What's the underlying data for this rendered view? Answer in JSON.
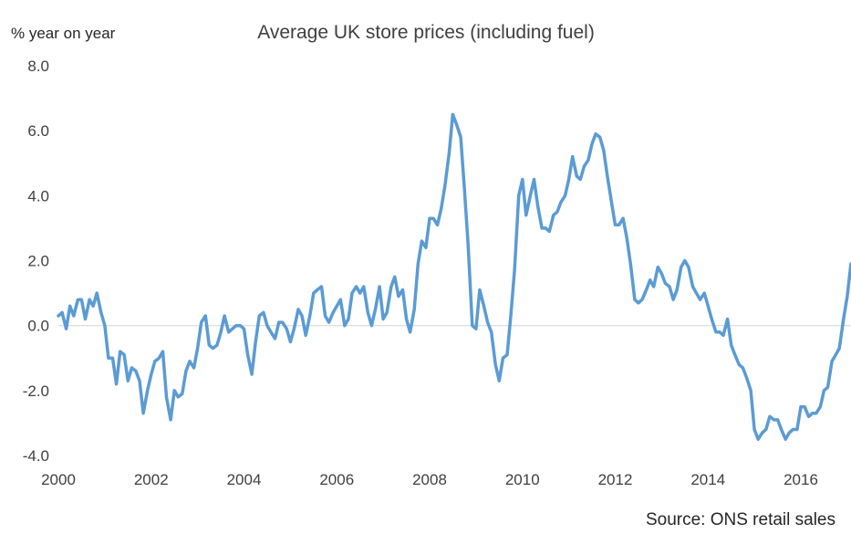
{
  "chart_data": {
    "type": "line",
    "title": "Average UK store prices (including fuel)",
    "ylabel": "% year on year",
    "xlabel": "",
    "source": "Source: ONS retail sales",
    "ylim": [
      -4.0,
      8.0
    ],
    "xlim": [
      2000,
      2017
    ],
    "y_ticks": [
      "8.0",
      "6.0",
      "4.0",
      "2.0",
      "0.0",
      "-2.0",
      "-4.0"
    ],
    "y_tick_values": [
      8,
      6,
      4,
      2,
      0,
      -2,
      -4
    ],
    "x_ticks": [
      "2000",
      "2002",
      "2004",
      "2006",
      "2008",
      "2010",
      "2012",
      "2014",
      "2016"
    ],
    "x_tick_values": [
      2000,
      2002,
      2004,
      2006,
      2008,
      2010,
      2012,
      2014,
      2016
    ],
    "grid": false,
    "legend": "none",
    "line_color": "#5b9bd5",
    "zero_line_color": "#d9d9d9",
    "series": [
      {
        "values": [
          [
            2000.0,
            0.3
          ],
          [
            2000.08,
            0.4
          ],
          [
            2000.17,
            -0.1
          ],
          [
            2000.25,
            0.6
          ],
          [
            2000.33,
            0.3
          ],
          [
            2000.42,
            0.8
          ],
          [
            2000.5,
            0.8
          ],
          [
            2000.58,
            0.2
          ],
          [
            2000.67,
            0.8
          ],
          [
            2000.75,
            0.6
          ],
          [
            2000.83,
            1.0
          ],
          [
            2000.92,
            0.4
          ],
          [
            2001.0,
            0.0
          ],
          [
            2001.08,
            -1.0
          ],
          [
            2001.17,
            -1.0
          ],
          [
            2001.25,
            -1.8
          ],
          [
            2001.33,
            -0.8
          ],
          [
            2001.42,
            -0.9
          ],
          [
            2001.5,
            -1.7
          ],
          [
            2001.58,
            -1.3
          ],
          [
            2001.67,
            -1.4
          ],
          [
            2001.75,
            -1.7
          ],
          [
            2001.83,
            -2.7
          ],
          [
            2001.92,
            -2.0
          ],
          [
            2002.0,
            -1.5
          ],
          [
            2002.08,
            -1.1
          ],
          [
            2002.17,
            -1.0
          ],
          [
            2002.25,
            -0.8
          ],
          [
            2002.33,
            -2.2
          ],
          [
            2002.42,
            -2.9
          ],
          [
            2002.5,
            -2.0
          ],
          [
            2002.58,
            -2.2
          ],
          [
            2002.67,
            -2.1
          ],
          [
            2002.75,
            -1.4
          ],
          [
            2002.83,
            -1.1
          ],
          [
            2002.92,
            -1.3
          ],
          [
            2003.0,
            -0.7
          ],
          [
            2003.08,
            0.1
          ],
          [
            2003.17,
            0.3
          ],
          [
            2003.25,
            -0.6
          ],
          [
            2003.33,
            -0.7
          ],
          [
            2003.42,
            -0.6
          ],
          [
            2003.5,
            -0.2
          ],
          [
            2003.58,
            0.3
          ],
          [
            2003.67,
            -0.2
          ],
          [
            2003.75,
            -0.1
          ],
          [
            2003.83,
            0.0
          ],
          [
            2003.92,
            0.0
          ],
          [
            2004.0,
            -0.1
          ],
          [
            2004.08,
            -0.9
          ],
          [
            2004.17,
            -1.5
          ],
          [
            2004.25,
            -0.5
          ],
          [
            2004.33,
            0.3
          ],
          [
            2004.42,
            0.4
          ],
          [
            2004.5,
            0.0
          ],
          [
            2004.58,
            -0.2
          ],
          [
            2004.67,
            -0.4
          ],
          [
            2004.75,
            0.1
          ],
          [
            2004.83,
            0.1
          ],
          [
            2004.92,
            -0.1
          ],
          [
            2005.0,
            -0.5
          ],
          [
            2005.08,
            -0.1
          ],
          [
            2005.17,
            0.5
          ],
          [
            2005.25,
            0.3
          ],
          [
            2005.33,
            -0.3
          ],
          [
            2005.42,
            0.3
          ],
          [
            2005.5,
            1.0
          ],
          [
            2005.58,
            1.1
          ],
          [
            2005.67,
            1.2
          ],
          [
            2005.75,
            0.3
          ],
          [
            2005.83,
            0.1
          ],
          [
            2005.92,
            0.4
          ],
          [
            2006.0,
            0.6
          ],
          [
            2006.08,
            0.8
          ],
          [
            2006.17,
            0.0
          ],
          [
            2006.25,
            0.2
          ],
          [
            2006.33,
            1.0
          ],
          [
            2006.42,
            1.2
          ],
          [
            2006.5,
            1.0
          ],
          [
            2006.58,
            1.2
          ],
          [
            2006.67,
            0.4
          ],
          [
            2006.75,
            0.0
          ],
          [
            2006.83,
            0.5
          ],
          [
            2006.92,
            1.2
          ],
          [
            2007.0,
            0.2
          ],
          [
            2007.08,
            0.4
          ],
          [
            2007.17,
            1.2
          ],
          [
            2007.25,
            1.5
          ],
          [
            2007.33,
            0.9
          ],
          [
            2007.42,
            1.1
          ],
          [
            2007.5,
            0.2
          ],
          [
            2007.58,
            -0.2
          ],
          [
            2007.67,
            0.5
          ],
          [
            2007.75,
            1.9
          ],
          [
            2007.83,
            2.6
          ],
          [
            2007.92,
            2.4
          ],
          [
            2008.0,
            3.3
          ],
          [
            2008.08,
            3.3
          ],
          [
            2008.17,
            3.1
          ],
          [
            2008.25,
            3.6
          ],
          [
            2008.33,
            4.3
          ],
          [
            2008.42,
            5.3
          ],
          [
            2008.5,
            6.5
          ],
          [
            2008.58,
            6.2
          ],
          [
            2008.67,
            5.8
          ],
          [
            2008.75,
            4.2
          ],
          [
            2008.83,
            2.5
          ],
          [
            2008.92,
            0.0
          ],
          [
            2009.0,
            -0.1
          ],
          [
            2009.08,
            1.1
          ],
          [
            2009.17,
            0.6
          ],
          [
            2009.25,
            0.1
          ],
          [
            2009.33,
            -0.2
          ],
          [
            2009.42,
            -1.2
          ],
          [
            2009.5,
            -1.7
          ],
          [
            2009.58,
            -1.0
          ],
          [
            2009.67,
            -0.9
          ],
          [
            2009.75,
            0.3
          ],
          [
            2009.83,
            1.7
          ],
          [
            2009.92,
            4.0
          ],
          [
            2010.0,
            4.5
          ],
          [
            2010.08,
            3.4
          ],
          [
            2010.17,
            4.0
          ],
          [
            2010.25,
            4.5
          ],
          [
            2010.33,
            3.7
          ],
          [
            2010.42,
            3.0
          ],
          [
            2010.5,
            3.0
          ],
          [
            2010.58,
            2.9
          ],
          [
            2010.67,
            3.4
          ],
          [
            2010.75,
            3.5
          ],
          [
            2010.83,
            3.8
          ],
          [
            2010.92,
            4.0
          ],
          [
            2011.0,
            4.5
          ],
          [
            2011.08,
            5.2
          ],
          [
            2011.17,
            4.6
          ],
          [
            2011.25,
            4.5
          ],
          [
            2011.33,
            4.9
          ],
          [
            2011.42,
            5.1
          ],
          [
            2011.5,
            5.6
          ],
          [
            2011.58,
            5.9
          ],
          [
            2011.67,
            5.8
          ],
          [
            2011.75,
            5.4
          ],
          [
            2011.83,
            4.6
          ],
          [
            2011.92,
            3.8
          ],
          [
            2012.0,
            3.1
          ],
          [
            2012.08,
            3.1
          ],
          [
            2012.17,
            3.3
          ],
          [
            2012.25,
            2.7
          ],
          [
            2012.33,
            1.9
          ],
          [
            2012.42,
            0.8
          ],
          [
            2012.5,
            0.7
          ],
          [
            2012.58,
            0.8
          ],
          [
            2012.67,
            1.1
          ],
          [
            2012.75,
            1.4
          ],
          [
            2012.83,
            1.2
          ],
          [
            2012.92,
            1.8
          ],
          [
            2013.0,
            1.6
          ],
          [
            2013.08,
            1.3
          ],
          [
            2013.17,
            1.2
          ],
          [
            2013.25,
            0.8
          ],
          [
            2013.33,
            1.1
          ],
          [
            2013.42,
            1.8
          ],
          [
            2013.5,
            2.0
          ],
          [
            2013.58,
            1.8
          ],
          [
            2013.67,
            1.2
          ],
          [
            2013.75,
            1.0
          ],
          [
            2013.83,
            0.8
          ],
          [
            2013.92,
            1.0
          ],
          [
            2014.0,
            0.6
          ],
          [
            2014.08,
            0.2
          ],
          [
            2014.17,
            -0.2
          ],
          [
            2014.25,
            -0.2
          ],
          [
            2014.33,
            -0.3
          ],
          [
            2014.42,
            0.2
          ],
          [
            2014.5,
            -0.6
          ],
          [
            2014.58,
            -0.9
          ],
          [
            2014.67,
            -1.2
          ],
          [
            2014.75,
            -1.3
          ],
          [
            2014.83,
            -1.6
          ],
          [
            2014.92,
            -2.0
          ],
          [
            2015.0,
            -3.2
          ],
          [
            2015.08,
            -3.5
          ],
          [
            2015.17,
            -3.3
          ],
          [
            2015.25,
            -3.2
          ],
          [
            2015.33,
            -2.8
          ],
          [
            2015.42,
            -2.9
          ],
          [
            2015.5,
            -2.9
          ],
          [
            2015.58,
            -3.2
          ],
          [
            2015.67,
            -3.5
          ],
          [
            2015.75,
            -3.3
          ],
          [
            2015.83,
            -3.2
          ],
          [
            2015.92,
            -3.2
          ],
          [
            2016.0,
            -2.5
          ],
          [
            2016.08,
            -2.5
          ],
          [
            2016.17,
            -2.8
          ],
          [
            2016.25,
            -2.7
          ],
          [
            2016.33,
            -2.7
          ],
          [
            2016.42,
            -2.5
          ],
          [
            2016.5,
            -2.0
          ],
          [
            2016.58,
            -1.9
          ],
          [
            2016.67,
            -1.1
          ],
          [
            2016.75,
            -0.9
          ],
          [
            2016.83,
            -0.7
          ],
          [
            2016.92,
            0.2
          ],
          [
            2017.0,
            0.9
          ],
          [
            2017.08,
            1.9
          ]
        ]
      }
    ]
  }
}
